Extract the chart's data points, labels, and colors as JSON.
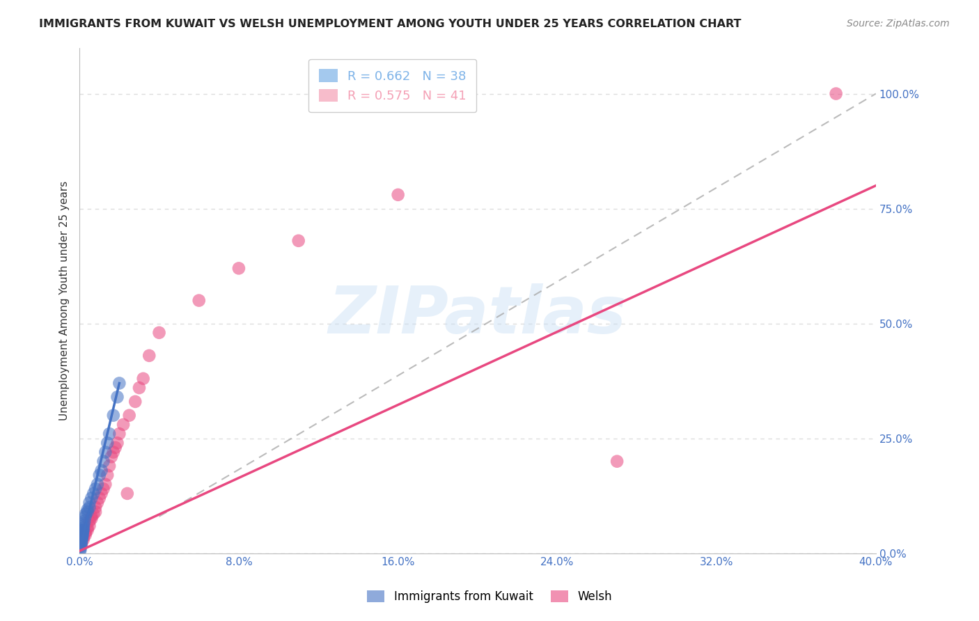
{
  "title": "IMMIGRANTS FROM KUWAIT VS WELSH UNEMPLOYMENT AMONG YOUTH UNDER 25 YEARS CORRELATION CHART",
  "source": "Source: ZipAtlas.com",
  "ylabel_left": "Unemployment Among Youth under 25 years",
  "xlim": [
    0.0,
    0.4
  ],
  "ylim": [
    0.0,
    1.1
  ],
  "xticks": [
    0.0,
    0.08,
    0.16,
    0.24,
    0.32,
    0.4
  ],
  "xtick_labels": [
    "0.0%",
    "8.0%",
    "16.0%",
    "24.0%",
    "32.0%",
    "40.0%"
  ],
  "yticks_right": [
    0.0,
    0.25,
    0.5,
    0.75,
    1.0
  ],
  "ytick_labels_right": [
    "0.0%",
    "25.0%",
    "50.0%",
    "75.0%",
    "100.0%"
  ],
  "legend_entries": [
    {
      "label": "Immigrants from Kuwait",
      "R": "0.662",
      "N": "38",
      "color": "#7EB3E8"
    },
    {
      "label": "Welsh",
      "R": "0.575",
      "N": "41",
      "color": "#F4A0B5"
    }
  ],
  "background_color": "#FFFFFF",
  "grid_color": "#DDDDDD",
  "watermark": "ZIPatlas",
  "kuwait_scatter": [
    [
      0.0005,
      0.01
    ],
    [
      0.0006,
      0.015
    ],
    [
      0.0007,
      0.02
    ],
    [
      0.0008,
      0.02
    ],
    [
      0.0009,
      0.025
    ],
    [
      0.001,
      0.03
    ],
    [
      0.001,
      0.035
    ],
    [
      0.0012,
      0.03
    ],
    [
      0.0013,
      0.035
    ],
    [
      0.0014,
      0.04
    ],
    [
      0.0015,
      0.04
    ],
    [
      0.0016,
      0.045
    ],
    [
      0.0017,
      0.05
    ],
    [
      0.0018,
      0.05
    ],
    [
      0.002,
      0.055
    ],
    [
      0.002,
      0.06
    ],
    [
      0.0022,
      0.065
    ],
    [
      0.0025,
      0.07
    ],
    [
      0.003,
      0.08
    ],
    [
      0.003,
      0.085
    ],
    [
      0.004,
      0.09
    ],
    [
      0.004,
      0.095
    ],
    [
      0.005,
      0.1
    ],
    [
      0.005,
      0.11
    ],
    [
      0.006,
      0.12
    ],
    [
      0.007,
      0.13
    ],
    [
      0.008,
      0.14
    ],
    [
      0.009,
      0.15
    ],
    [
      0.01,
      0.17
    ],
    [
      0.011,
      0.18
    ],
    [
      0.012,
      0.2
    ],
    [
      0.013,
      0.22
    ],
    [
      0.014,
      0.24
    ],
    [
      0.015,
      0.26
    ],
    [
      0.017,
      0.3
    ],
    [
      0.019,
      0.34
    ],
    [
      0.02,
      0.37
    ],
    [
      0.0003,
      0.005
    ]
  ],
  "welsh_scatter": [
    [
      0.001,
      0.02
    ],
    [
      0.001,
      0.025
    ],
    [
      0.002,
      0.03
    ],
    [
      0.002,
      0.035
    ],
    [
      0.003,
      0.04
    ],
    [
      0.003,
      0.045
    ],
    [
      0.004,
      0.05
    ],
    [
      0.004,
      0.055
    ],
    [
      0.005,
      0.06
    ],
    [
      0.005,
      0.07
    ],
    [
      0.006,
      0.075
    ],
    [
      0.006,
      0.08
    ],
    [
      0.007,
      0.085
    ],
    [
      0.008,
      0.09
    ],
    [
      0.008,
      0.1
    ],
    [
      0.009,
      0.11
    ],
    [
      0.01,
      0.12
    ],
    [
      0.011,
      0.13
    ],
    [
      0.012,
      0.14
    ],
    [
      0.013,
      0.15
    ],
    [
      0.014,
      0.17
    ],
    [
      0.015,
      0.19
    ],
    [
      0.016,
      0.21
    ],
    [
      0.017,
      0.22
    ],
    [
      0.018,
      0.23
    ],
    [
      0.019,
      0.24
    ],
    [
      0.02,
      0.26
    ],
    [
      0.022,
      0.28
    ],
    [
      0.025,
      0.3
    ],
    [
      0.028,
      0.33
    ],
    [
      0.03,
      0.36
    ],
    [
      0.032,
      0.38
    ],
    [
      0.035,
      0.43
    ],
    [
      0.04,
      0.48
    ],
    [
      0.06,
      0.55
    ],
    [
      0.08,
      0.62
    ],
    [
      0.11,
      0.68
    ],
    [
      0.16,
      0.78
    ],
    [
      0.38,
      1.0
    ],
    [
      0.27,
      0.2
    ],
    [
      0.024,
      0.13
    ]
  ],
  "kuwait_line_color": "#4472C4",
  "welsh_line_color": "#E84880",
  "ref_line_color": "#AAAAAA",
  "scatter_alpha": 0.55,
  "scatter_size": 100,
  "kuwait_line_x": [
    0.0,
    0.02
  ],
  "kuwait_line_y": [
    0.005,
    0.37
  ],
  "welsh_line_x": [
    0.0,
    0.4
  ],
  "welsh_line_y": [
    0.005,
    0.8
  ],
  "ref_line_x": [
    0.04,
    0.4
  ],
  "ref_line_y": [
    0.08,
    1.0
  ]
}
